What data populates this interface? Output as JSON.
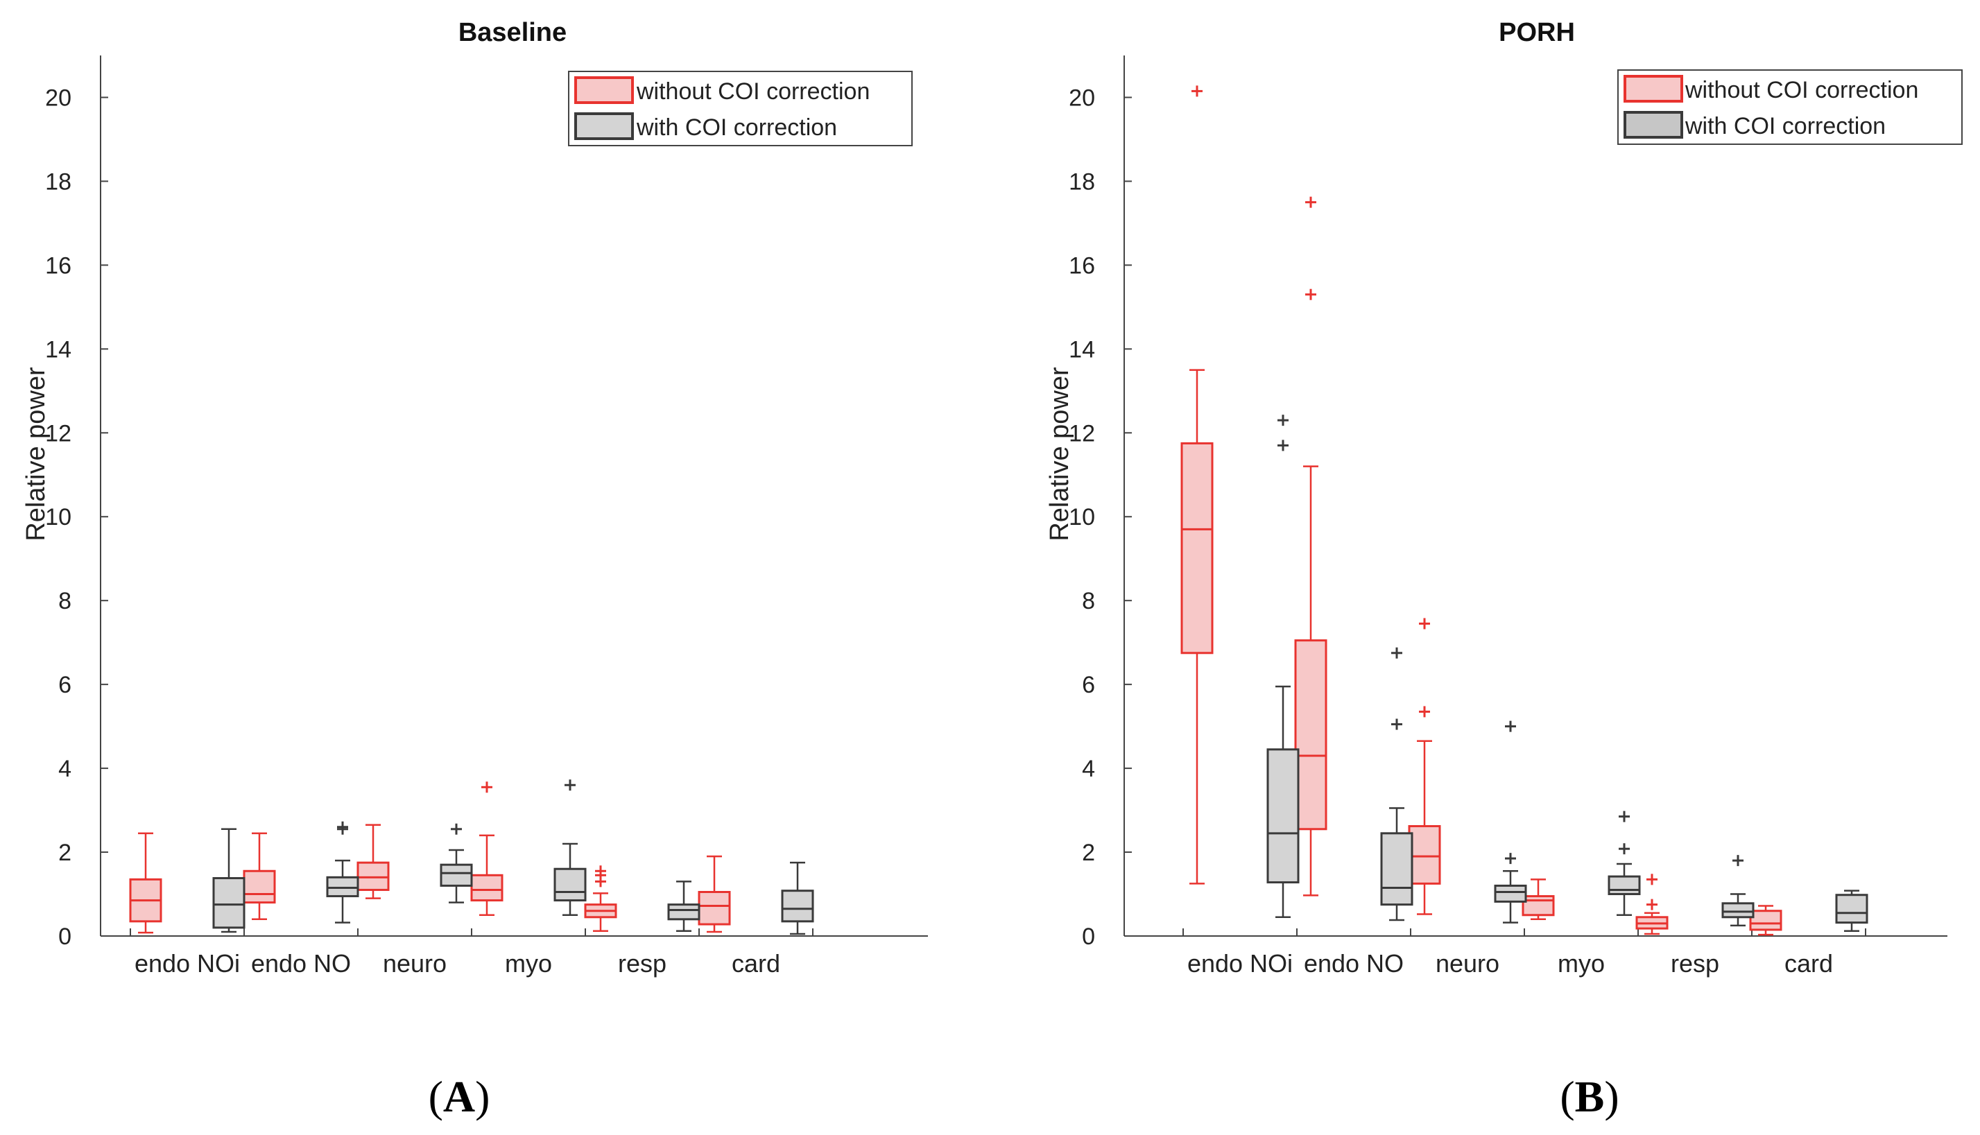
{
  "colors": {
    "without_edge": "#e8332f",
    "without_fill": "#f7c8c8",
    "with_edge": "#3a3a3a",
    "with_fill": "#d4d4d4",
    "with_fill_dark": "#c6c6c6",
    "axis": "#444444"
  },
  "chart_data": [
    {
      "type": "box",
      "title": "Baseline",
      "panel_label": "A",
      "xlabel": "",
      "ylabel": "Relative power",
      "ylim": [
        0,
        21
      ],
      "yticks": [
        0,
        2,
        4,
        6,
        8,
        10,
        12,
        14,
        16,
        18,
        20
      ],
      "categories": [
        "endo NOi",
        "endo NO",
        "neuro",
        "myo",
        "resp",
        "card"
      ],
      "legend": {
        "position": "top-right",
        "entries": [
          "without COI correction",
          "with COI correction"
        ]
      },
      "series": [
        {
          "name": "without COI correction",
          "boxes": [
            {
              "whislo": 0.08,
              "q1": 0.35,
              "med": 0.85,
              "q3": 1.35,
              "whishi": 2.45,
              "fliers": []
            },
            {
              "whislo": 0.4,
              "q1": 0.8,
              "med": 1.0,
              "q3": 1.55,
              "whishi": 2.45,
              "fliers": []
            },
            {
              "whislo": 0.9,
              "q1": 1.1,
              "med": 1.4,
              "q3": 1.75,
              "whishi": 2.65,
              "fliers": []
            },
            {
              "whislo": 0.5,
              "q1": 0.85,
              "med": 1.1,
              "q3": 1.45,
              "whishi": 2.4,
              "fliers": [
                3.55
              ]
            },
            {
              "whislo": 0.12,
              "q1": 0.45,
              "med": 0.6,
              "q3": 0.75,
              "whishi": 1.02,
              "fliers": [
                1.3,
                1.45,
                1.55
              ]
            },
            {
              "whislo": 0.1,
              "q1": 0.28,
              "med": 0.72,
              "q3": 1.05,
              "whishi": 1.9,
              "fliers": []
            }
          ]
        },
        {
          "name": "with COI correction",
          "boxes": [
            {
              "whislo": 0.1,
              "q1": 0.2,
              "med": 0.75,
              "q3": 1.38,
              "whishi": 2.55,
              "fliers": []
            },
            {
              "whislo": 0.32,
              "q1": 0.95,
              "med": 1.15,
              "q3": 1.4,
              "whishi": 1.8,
              "fliers": [
                2.55,
                2.6
              ]
            },
            {
              "whislo": 0.8,
              "q1": 1.2,
              "med": 1.5,
              "q3": 1.7,
              "whishi": 2.05,
              "fliers": [
                2.55
              ]
            },
            {
              "whislo": 0.5,
              "q1": 0.85,
              "med": 1.05,
              "q3": 1.6,
              "whishi": 2.2,
              "fliers": [
                3.6
              ]
            },
            {
              "whislo": 0.12,
              "q1": 0.4,
              "med": 0.62,
              "q3": 0.75,
              "whishi": 1.3,
              "fliers": []
            },
            {
              "whislo": 0.05,
              "q1": 0.35,
              "med": 0.65,
              "q3": 1.08,
              "whishi": 1.75,
              "fliers": []
            }
          ]
        }
      ]
    },
    {
      "type": "box",
      "title": "PORH",
      "panel_label": "B",
      "xlabel": "",
      "ylabel": "Relative power",
      "ylim": [
        0,
        21
      ],
      "yticks": [
        0,
        2,
        4,
        6,
        8,
        10,
        12,
        14,
        16,
        18,
        20
      ],
      "categories": [
        "endo NOi",
        "endo NO",
        "neuro",
        "myo",
        "resp",
        "card"
      ],
      "legend": {
        "position": "top-right",
        "entries": [
          "without COI correction",
          "with COI correction"
        ]
      },
      "series": [
        {
          "name": "without COI correction",
          "boxes": [
            {
              "whislo": 1.25,
              "q1": 6.75,
              "med": 9.7,
              "q3": 11.75,
              "whishi": 13.5,
              "fliers": [
                20.15
              ]
            },
            {
              "whislo": 0.97,
              "q1": 2.55,
              "med": 4.3,
              "q3": 7.05,
              "whishi": 11.2,
              "fliers": [
                15.3,
                17.5
              ]
            },
            {
              "whislo": 0.52,
              "q1": 1.25,
              "med": 1.9,
              "q3": 2.62,
              "whishi": 4.65,
              "fliers": [
                5.35,
                7.45
              ]
            },
            {
              "whislo": 0.4,
              "q1": 0.5,
              "med": 0.85,
              "q3": 0.95,
              "whishi": 1.35,
              "fliers": []
            },
            {
              "whislo": 0.05,
              "q1": 0.18,
              "med": 0.3,
              "q3": 0.45,
              "whishi": 0.55,
              "fliers": [
                0.75,
                1.35
              ]
            },
            {
              "whislo": 0.03,
              "q1": 0.15,
              "med": 0.3,
              "q3": 0.6,
              "whishi": 0.72,
              "fliers": []
            }
          ]
        },
        {
          "name": "with COI correction",
          "boxes": [
            {
              "whislo": 0.45,
              "q1": 1.28,
              "med": 2.45,
              "q3": 4.45,
              "whishi": 5.95,
              "fliers": [
                11.7,
                12.3
              ]
            },
            {
              "whislo": 0.38,
              "q1": 0.75,
              "med": 1.15,
              "q3": 2.45,
              "whishi": 3.05,
              "fliers": [
                5.05,
                6.75
              ]
            },
            {
              "whislo": 0.32,
              "q1": 0.82,
              "med": 1.05,
              "q3": 1.2,
              "whishi": 1.55,
              "fliers": [
                1.85,
                5.0
              ]
            },
            {
              "whislo": 0.5,
              "q1": 1.0,
              "med": 1.1,
              "q3": 1.42,
              "whishi": 1.72,
              "fliers": [
                2.08,
                2.85
              ]
            },
            {
              "whislo": 0.25,
              "q1": 0.45,
              "med": 0.58,
              "q3": 0.78,
              "whishi": 1.0,
              "fliers": [
                1.8
              ]
            },
            {
              "whislo": 0.12,
              "q1": 0.32,
              "med": 0.55,
              "q3": 0.98,
              "whishi": 1.08,
              "fliers": []
            }
          ]
        }
      ]
    }
  ]
}
